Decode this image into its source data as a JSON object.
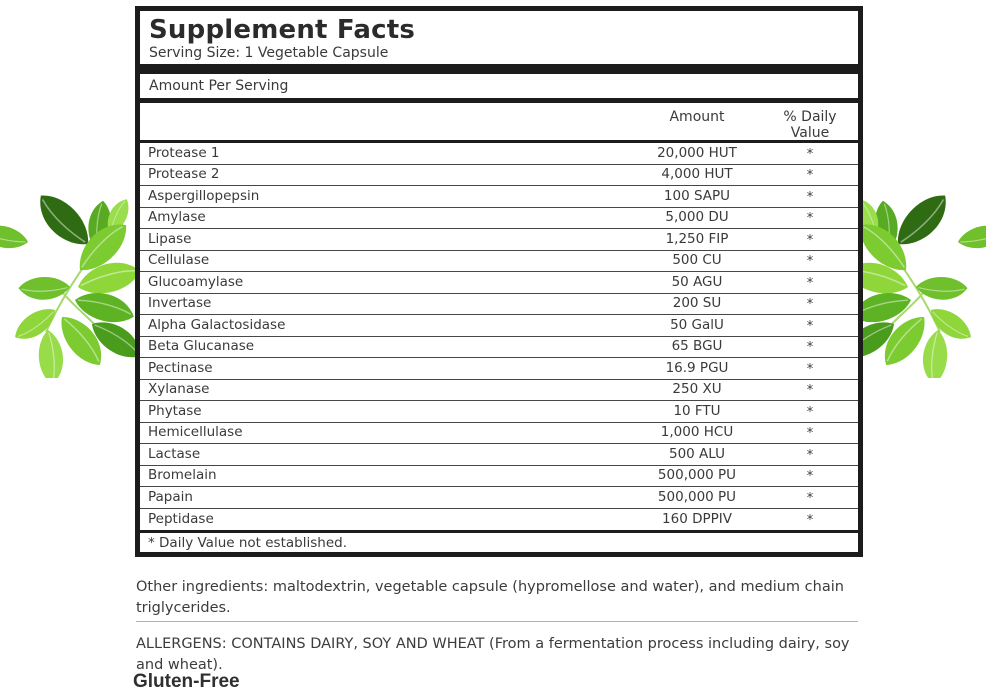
{
  "label": {
    "title": "Supplement Facts",
    "serving_size": "Serving Size: 1 Vegetable Capsule",
    "amount_per_serving": "Amount Per Serving",
    "columns": {
      "amount": "Amount",
      "daily_value_line1": "% Daily",
      "daily_value_line2": "Value"
    },
    "rows": [
      {
        "name": "Protease 1",
        "amount": "20,000 HUT",
        "dv": "*"
      },
      {
        "name": "Protease 2",
        "amount": "4,000 HUT",
        "dv": "*"
      },
      {
        "name": "Aspergillopepsin",
        "amount": "100 SAPU",
        "dv": "*"
      },
      {
        "name": "Amylase",
        "amount": "5,000 DU",
        "dv": "*"
      },
      {
        "name": "Lipase",
        "amount": "1,250 FIP",
        "dv": "*"
      },
      {
        "name": "Cellulase",
        "amount": "500 CU",
        "dv": "*"
      },
      {
        "name": "Glucoamylase",
        "amount": "50 AGU",
        "dv": "*"
      },
      {
        "name": "Invertase",
        "amount": "200 SU",
        "dv": "*"
      },
      {
        "name": "Alpha Galactosidase",
        "amount": "50 GalU",
        "dv": "*"
      },
      {
        "name": "Beta Glucanase",
        "amount": "65 BGU",
        "dv": "*"
      },
      {
        "name": "Pectinase",
        "amount": "16.9 PGU",
        "dv": "*"
      },
      {
        "name": "Xylanase",
        "amount": "250 XU",
        "dv": "*"
      },
      {
        "name": "Phytase",
        "amount": "10 FTU",
        "dv": "*"
      },
      {
        "name": "Hemicellulase",
        "amount": "1,000 HCU",
        "dv": "*"
      },
      {
        "name": "Lactase",
        "amount": "500 ALU",
        "dv": "*"
      },
      {
        "name": "Bromelain",
        "amount": "500,000 PU",
        "dv": "*"
      },
      {
        "name": "Papain",
        "amount": "500,000 PU",
        "dv": "*"
      },
      {
        "name": "Peptidase",
        "amount": "160 DPPIV",
        "dv": "*"
      }
    ],
    "footnote": "* Daily Value not established."
  },
  "sections": {
    "other_ingredients": "Other ingredients: maltodextrin, vegetable capsule (hypromellose and water), and medium chain triglycerides.",
    "allergens": "ALLERGENS: CONTAINS DAIRY, SOY AND WHEAT (From a fermentation process including dairy, soy and wheat).",
    "gluten_free": "Gluten-Free"
  },
  "decorations": {
    "left_icon": "green-leaves",
    "right_icon": "green-leaves"
  },
  "colors": {
    "panel_border": "#1c1c1c",
    "text": "#3a3a3a",
    "background": "#ffffff",
    "leaf_bright": "#8fd63a",
    "leaf_mid": "#5eb324",
    "leaf_dark": "#2e6b12"
  }
}
